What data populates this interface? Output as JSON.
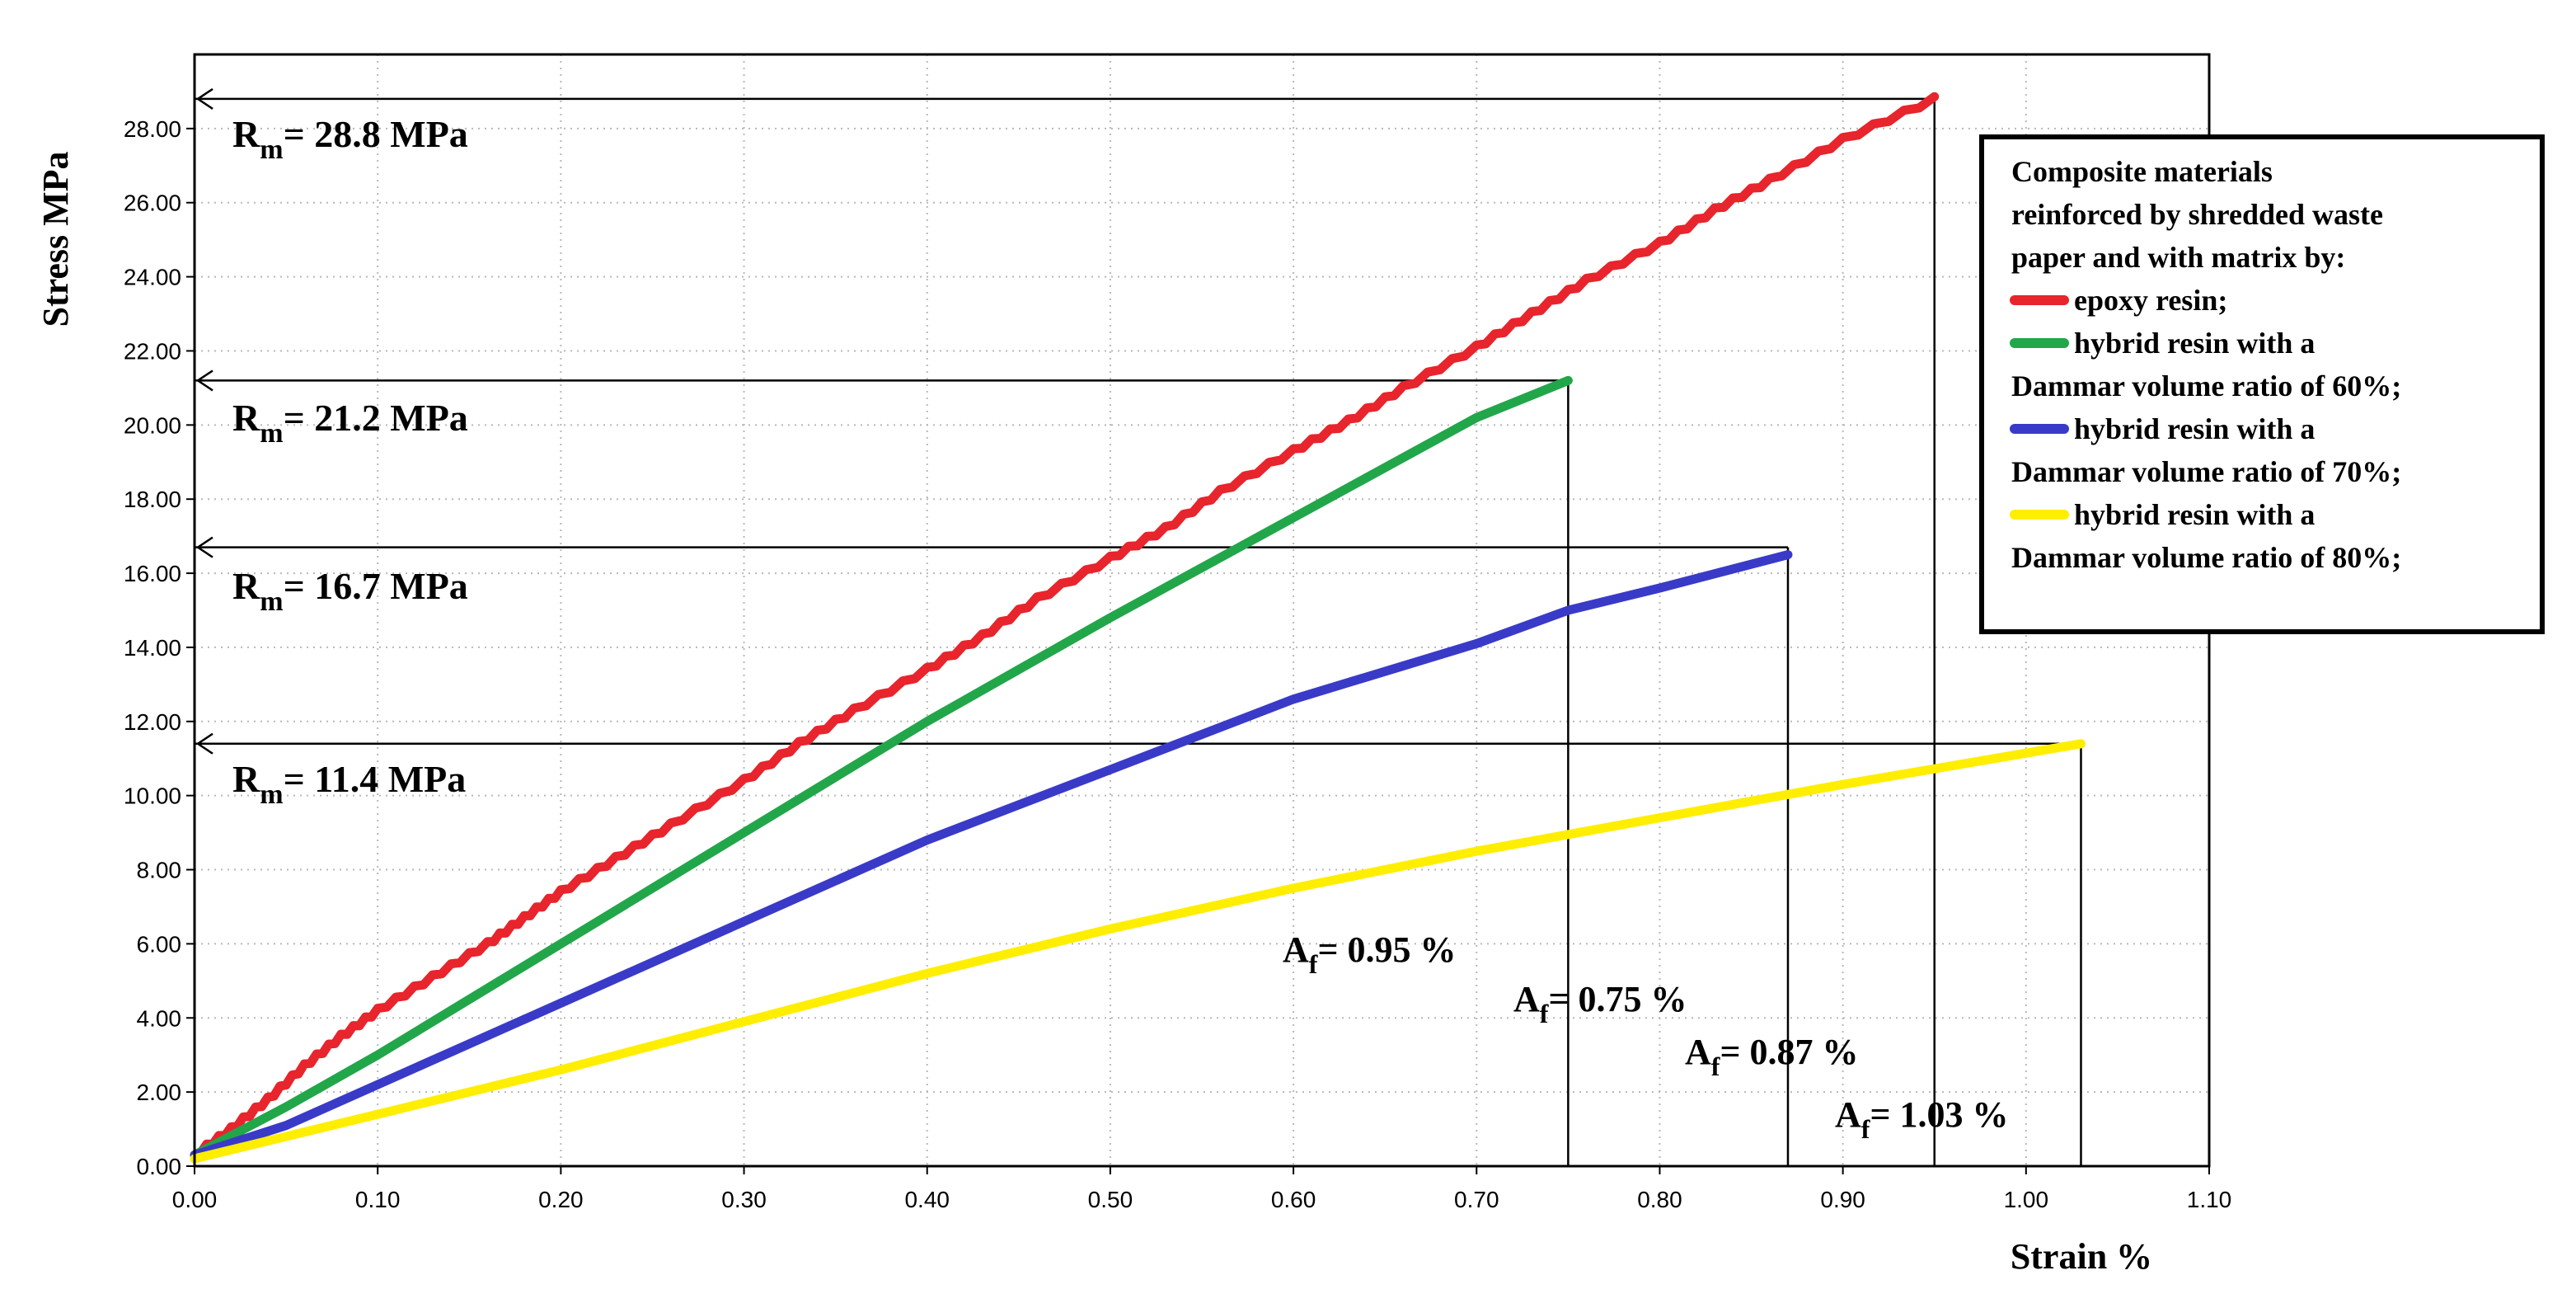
{
  "chart_data": {
    "type": "line",
    "xlabel": "Strain %",
    "ylabel": "Stress MPa",
    "xlim": [
      0,
      1.1
    ],
    "ylim": [
      0,
      30
    ],
    "x_ticks": [
      "0.00",
      "0.10",
      "0.20",
      "0.30",
      "0.40",
      "0.50",
      "0.60",
      "0.70",
      "0.80",
      "0.90",
      "1.00",
      "1.10"
    ],
    "y_ticks": [
      "0.00",
      "2.00",
      "4.00",
      "6.00",
      "8.00",
      "10.00",
      "12.00",
      "14.00",
      "16.00",
      "18.00",
      "20.00",
      "22.00",
      "24.00",
      "26.00",
      "28.00"
    ],
    "grid": true,
    "legend": {
      "position": "top-right",
      "title_lines": [
        "Composite materials",
        "reinforced by shredded waste",
        "paper and with matrix by:"
      ],
      "entries": [
        {
          "label": "epoxy resin;",
          "cont": ""
        },
        {
          "label": "hybrid resin with a",
          "cont": "Dammar volume ratio of 60%;"
        },
        {
          "label": "hybrid resin with a",
          "cont": "Dammar volume ratio of 70%;"
        },
        {
          "label": "hybrid resin with a",
          "cont": "Dammar volume ratio of 80%;"
        }
      ]
    },
    "series": [
      {
        "color": "#e8242c",
        "x": [
          0,
          0.02,
          0.04,
          0.06,
          0.08,
          0.1,
          0.13,
          0.16,
          0.18,
          0.2,
          0.23,
          0.26,
          0.3,
          0.33,
          0.36,
          0.4,
          0.43,
          0.46,
          0.5,
          0.53,
          0.56,
          0.6,
          0.63,
          0.66,
          0.7,
          0.73,
          0.76,
          0.8,
          0.83,
          0.86,
          0.9,
          0.95
        ],
        "y": [
          0.3,
          1.0,
          1.8,
          2.7,
          3.5,
          4.2,
          5.1,
          6.0,
          6.7,
          7.4,
          8.3,
          9.2,
          10.4,
          11.4,
          12.3,
          13.4,
          14.3,
          15.3,
          16.4,
          17.2,
          18.2,
          19.3,
          20.1,
          21.0,
          22.1,
          23.0,
          23.9,
          24.9,
          25.8,
          26.6,
          27.7,
          28.8
        ]
      },
      {
        "color": "#22a64a",
        "x": [
          0,
          0.05,
          0.1,
          0.2,
          0.3,
          0.4,
          0.5,
          0.6,
          0.7,
          0.75
        ],
        "y": [
          0.3,
          1.6,
          3.0,
          6.0,
          9.0,
          12.0,
          14.8,
          17.5,
          20.2,
          21.2
        ]
      },
      {
        "color": "#3a3ac8",
        "x": [
          0,
          0.05,
          0.1,
          0.2,
          0.3,
          0.4,
          0.5,
          0.6,
          0.7,
          0.75,
          0.8,
          0.87
        ],
        "y": [
          0.3,
          1.1,
          2.2,
          4.4,
          6.6,
          8.8,
          10.7,
          12.6,
          14.1,
          15.0,
          15.6,
          16.5
        ]
      },
      {
        "color": "#ffee00",
        "x": [
          0,
          0.1,
          0.2,
          0.3,
          0.4,
          0.5,
          0.6,
          0.7,
          0.8,
          0.9,
          1.03
        ],
        "y": [
          0.2,
          1.4,
          2.6,
          3.9,
          5.2,
          6.4,
          7.5,
          8.5,
          9.4,
          10.3,
          11.4
        ]
      }
    ],
    "reference_lines": [
      {
        "y": 28.8,
        "x_end": 0.95
      },
      {
        "y": 21.2,
        "x_end": 0.75
      },
      {
        "y": 16.7,
        "x_end": 0.87
      },
      {
        "y": 11.4,
        "x_end": 1.03
      }
    ],
    "annotations": [
      {
        "main": "R",
        "sub": "m",
        "rest": "= 28.8 MPa",
        "y": 28.8
      },
      {
        "main": "R",
        "sub": "m",
        "rest": "= 21.2 MPa",
        "y": 21.2
      },
      {
        "main": "R",
        "sub": "m",
        "rest": "= 16.7 MPa",
        "y": 16.7
      },
      {
        "main": "R",
        "sub": "m",
        "rest": "= 11.4 MPa",
        "y": 11.4
      },
      {
        "main": "A",
        "sub": "f",
        "rest": "=  0.95 %"
      },
      {
        "main": "A",
        "sub": "f",
        "rest": "= 0.75 %"
      },
      {
        "main": "A",
        "sub": "f",
        "rest": "= 0.87 %"
      },
      {
        "main": "A",
        "sub": "f",
        "rest": "= 1.03 %"
      }
    ]
  }
}
